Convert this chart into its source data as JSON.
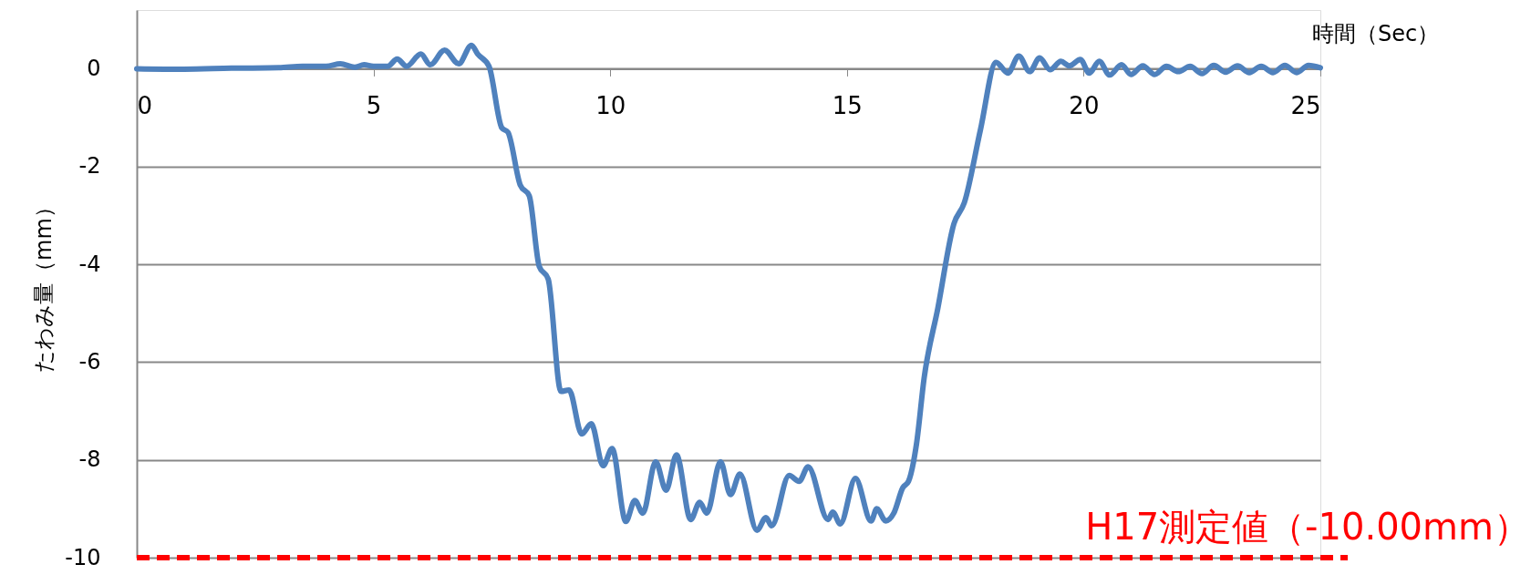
{
  "chart_data": {
    "type": "line",
    "xlabel": "時間（Sec）",
    "ylabel": "たわみ量（mm）",
    "xlim": [
      0,
      25
    ],
    "xticks": [
      0,
      5,
      10,
      15,
      20,
      25
    ],
    "ylim": [
      -10,
      1.2
    ],
    "yticks": [
      -10,
      -8,
      -6,
      -4,
      -2,
      0
    ],
    "grid": "y",
    "line_style": "solid",
    "series": [
      {
        "color": "#4f81bd",
        "x": [
          0,
          1,
          2,
          3,
          3.5,
          4,
          4.3,
          4.6,
          4.8,
          5.0,
          5.3,
          5.5,
          5.7,
          6.0,
          6.2,
          6.5,
          6.8,
          7.07,
          7.2,
          7.44,
          7.71,
          7.84,
          8.1,
          8.29,
          8.5,
          8.69,
          8.96,
          9.13,
          9.4,
          9.6,
          9.85,
          10.04,
          10.33,
          10.52,
          10.69,
          10.96,
          11.18,
          11.4,
          11.7,
          11.89,
          12.04,
          12.33,
          12.54,
          12.74,
          13.1,
          13.29,
          13.41,
          13.78,
          13.99,
          14.18,
          14.6,
          14.7,
          14.86,
          15.18,
          15.51,
          15.63,
          15.82,
          15.99,
          16.18,
          16.3,
          16.47,
          16.63,
          16.92,
          17.26,
          17.48,
          17.82,
          18.15,
          18.4,
          18.63,
          18.86,
          19.07,
          19.29,
          19.52,
          19.7,
          19.93,
          20.12,
          20.33,
          20.55,
          20.8,
          21.0,
          21.25,
          21.5,
          21.75,
          22.0,
          22.25,
          22.5,
          22.75,
          23.0,
          23.25,
          23.5,
          23.75,
          24.0,
          24.25,
          24.5,
          24.75,
          25
        ],
        "values": [
          0,
          -0.01,
          0.01,
          0.02,
          0.05,
          0.05,
          0.1,
          0.03,
          0.08,
          0.05,
          0.05,
          0.2,
          0.05,
          0.3,
          0.08,
          0.38,
          0.1,
          0.48,
          0.3,
          0.05,
          -1.21,
          -1.3,
          -2.38,
          -2.6,
          -4.04,
          -4.3,
          -6.6,
          -6.57,
          -7.47,
          -7.26,
          -8.12,
          -7.77,
          -9.26,
          -8.83,
          -9.09,
          -8.04,
          -8.62,
          -7.9,
          -9.22,
          -8.87,
          -9.09,
          -8.04,
          -8.71,
          -8.29,
          -9.44,
          -9.18,
          -9.35,
          -8.32,
          -8.44,
          -8.14,
          -9.22,
          -9.07,
          -9.31,
          -8.38,
          -9.25,
          -9.0,
          -9.25,
          -9.09,
          -8.57,
          -8.44,
          -7.67,
          -6.33,
          -4.9,
          -3.17,
          -2.74,
          -1.25,
          0.13,
          -0.09,
          0.26,
          -0.06,
          0.22,
          -0.02,
          0.15,
          0.06,
          0.19,
          -0.09,
          0.15,
          -0.13,
          0.08,
          -0.12,
          0.06,
          -0.12,
          0.05,
          -0.06,
          0.05,
          -0.1,
          0.07,
          -0.07,
          0.06,
          -0.08,
          0.05,
          -0.08,
          0.07,
          -0.08,
          0.07,
          0.02
        ]
      }
    ],
    "ref_lines": [
      {
        "axis": "y",
        "value": -10,
        "label": "H17測定値（-10.00mm）",
        "color": "#ff0000",
        "line_style": "dashed"
      }
    ]
  }
}
